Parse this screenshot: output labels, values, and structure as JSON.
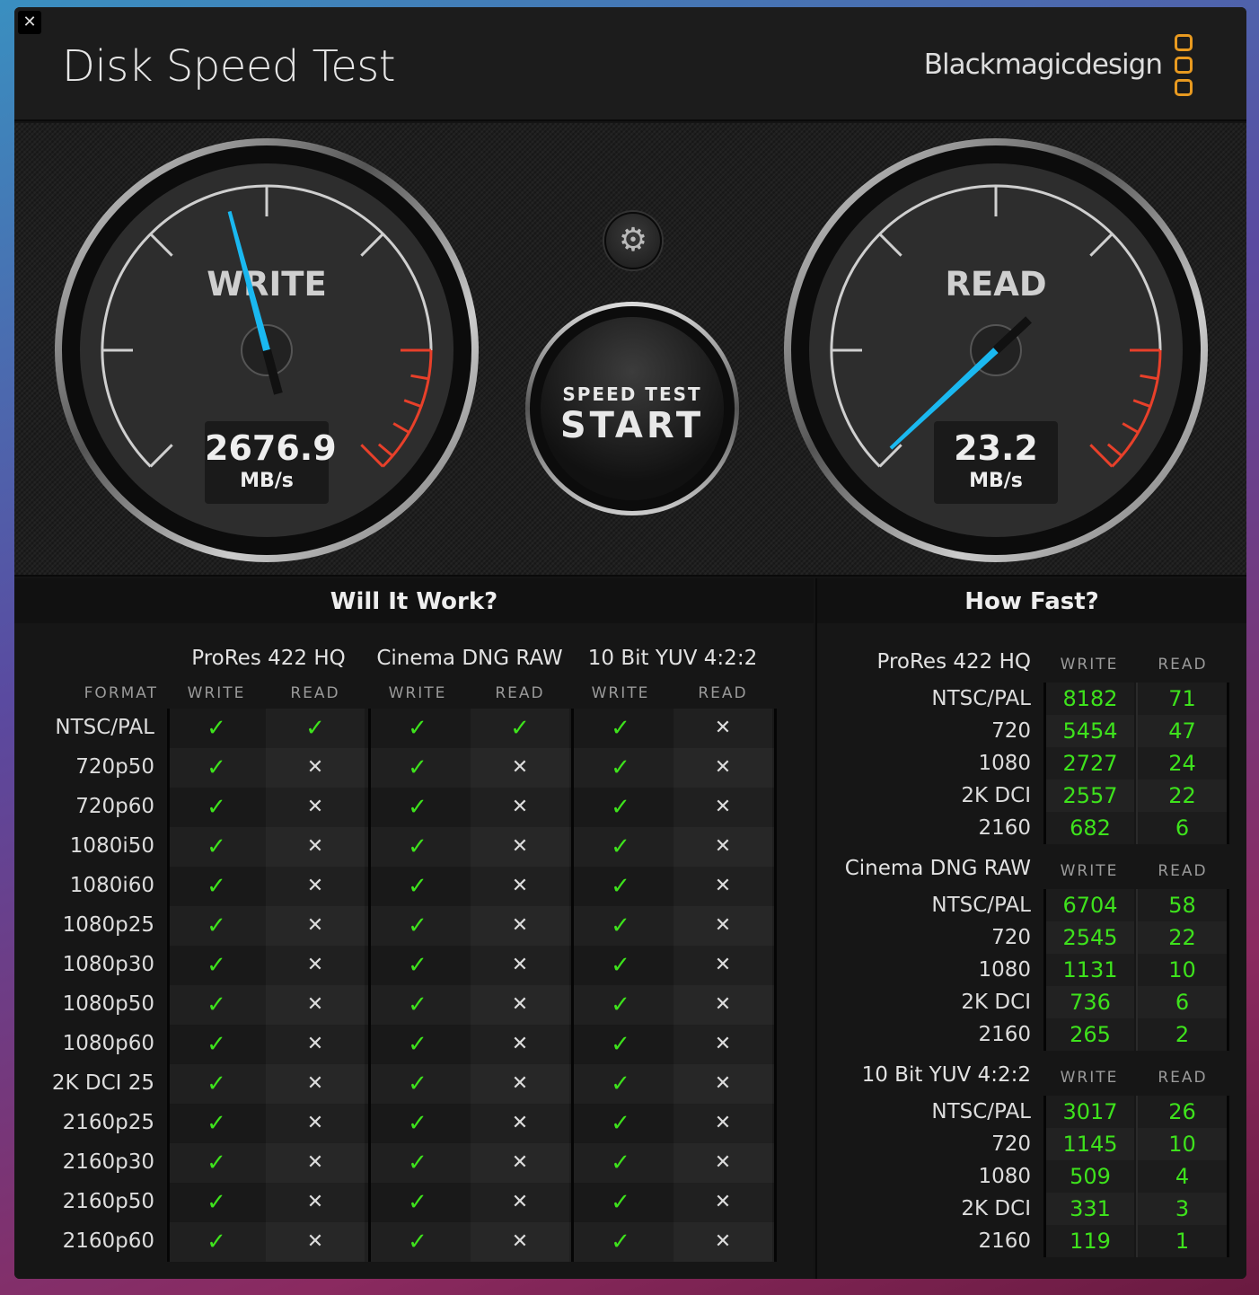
{
  "window": {
    "title": "Disk Speed Test",
    "brand": "Blackmagicdesign",
    "close_icon": "close-icon"
  },
  "gauges": {
    "write": {
      "label": "WRITE",
      "value": "2676.9",
      "unit": "MB/s",
      "needle_color": "#1ab8f0"
    },
    "read": {
      "label": "READ",
      "value": "23.2",
      "unit": "MB/s",
      "needle_color": "#1ab8f0"
    },
    "redline_color": "#e8402a"
  },
  "settings_icon": "gear-icon",
  "start_button": {
    "line1": "SPEED TEST",
    "line2": "START"
  },
  "will_it_work": {
    "title": "Will It Work?",
    "format_label": "FORMAT",
    "groups": [
      "ProRes 422 HQ",
      "Cinema DNG RAW",
      "10 Bit YUV 4:2:2"
    ],
    "sub": [
      "WRITE",
      "READ"
    ],
    "rows": [
      {
        "format": "NTSC/PAL",
        "results": [
          true,
          true,
          true,
          true,
          true,
          false
        ]
      },
      {
        "format": "720p50",
        "results": [
          true,
          false,
          true,
          false,
          true,
          false
        ]
      },
      {
        "format": "720p60",
        "results": [
          true,
          false,
          true,
          false,
          true,
          false
        ]
      },
      {
        "format": "1080i50",
        "results": [
          true,
          false,
          true,
          false,
          true,
          false
        ]
      },
      {
        "format": "1080i60",
        "results": [
          true,
          false,
          true,
          false,
          true,
          false
        ]
      },
      {
        "format": "1080p25",
        "results": [
          true,
          false,
          true,
          false,
          true,
          false
        ]
      },
      {
        "format": "1080p30",
        "results": [
          true,
          false,
          true,
          false,
          true,
          false
        ]
      },
      {
        "format": "1080p50",
        "results": [
          true,
          false,
          true,
          false,
          true,
          false
        ]
      },
      {
        "format": "1080p60",
        "results": [
          true,
          false,
          true,
          false,
          true,
          false
        ]
      },
      {
        "format": "2K DCI 25",
        "results": [
          true,
          false,
          true,
          false,
          true,
          false
        ]
      },
      {
        "format": "2160p25",
        "results": [
          true,
          false,
          true,
          false,
          true,
          false
        ]
      },
      {
        "format": "2160p30",
        "results": [
          true,
          false,
          true,
          false,
          true,
          false
        ]
      },
      {
        "format": "2160p50",
        "results": [
          true,
          false,
          true,
          false,
          true,
          false
        ]
      },
      {
        "format": "2160p60",
        "results": [
          true,
          false,
          true,
          false,
          true,
          false
        ]
      }
    ],
    "check_symbol": "✓",
    "cross_symbol": "✕",
    "check_color": "#3ee21c"
  },
  "how_fast": {
    "title": "How Fast?",
    "write_label": "WRITE",
    "read_label": "READ",
    "groups": [
      {
        "name": "ProRes 422 HQ",
        "rows": [
          [
            "NTSC/PAL",
            "8182",
            "71"
          ],
          [
            "720",
            "5454",
            "47"
          ],
          [
            "1080",
            "2727",
            "24"
          ],
          [
            "2K DCI",
            "2557",
            "22"
          ],
          [
            "2160",
            "682",
            "6"
          ]
        ]
      },
      {
        "name": "Cinema DNG RAW",
        "rows": [
          [
            "NTSC/PAL",
            "6704",
            "58"
          ],
          [
            "720",
            "2545",
            "22"
          ],
          [
            "1080",
            "1131",
            "10"
          ],
          [
            "2K DCI",
            "736",
            "6"
          ],
          [
            "2160",
            "265",
            "2"
          ]
        ]
      },
      {
        "name": "10 Bit YUV 4:2:2",
        "rows": [
          [
            "NTSC/PAL",
            "3017",
            "26"
          ],
          [
            "720",
            "1145",
            "10"
          ],
          [
            "1080",
            "509",
            "4"
          ],
          [
            "2K DCI",
            "331",
            "3"
          ],
          [
            "2160",
            "119",
            "1"
          ]
        ]
      }
    ]
  }
}
